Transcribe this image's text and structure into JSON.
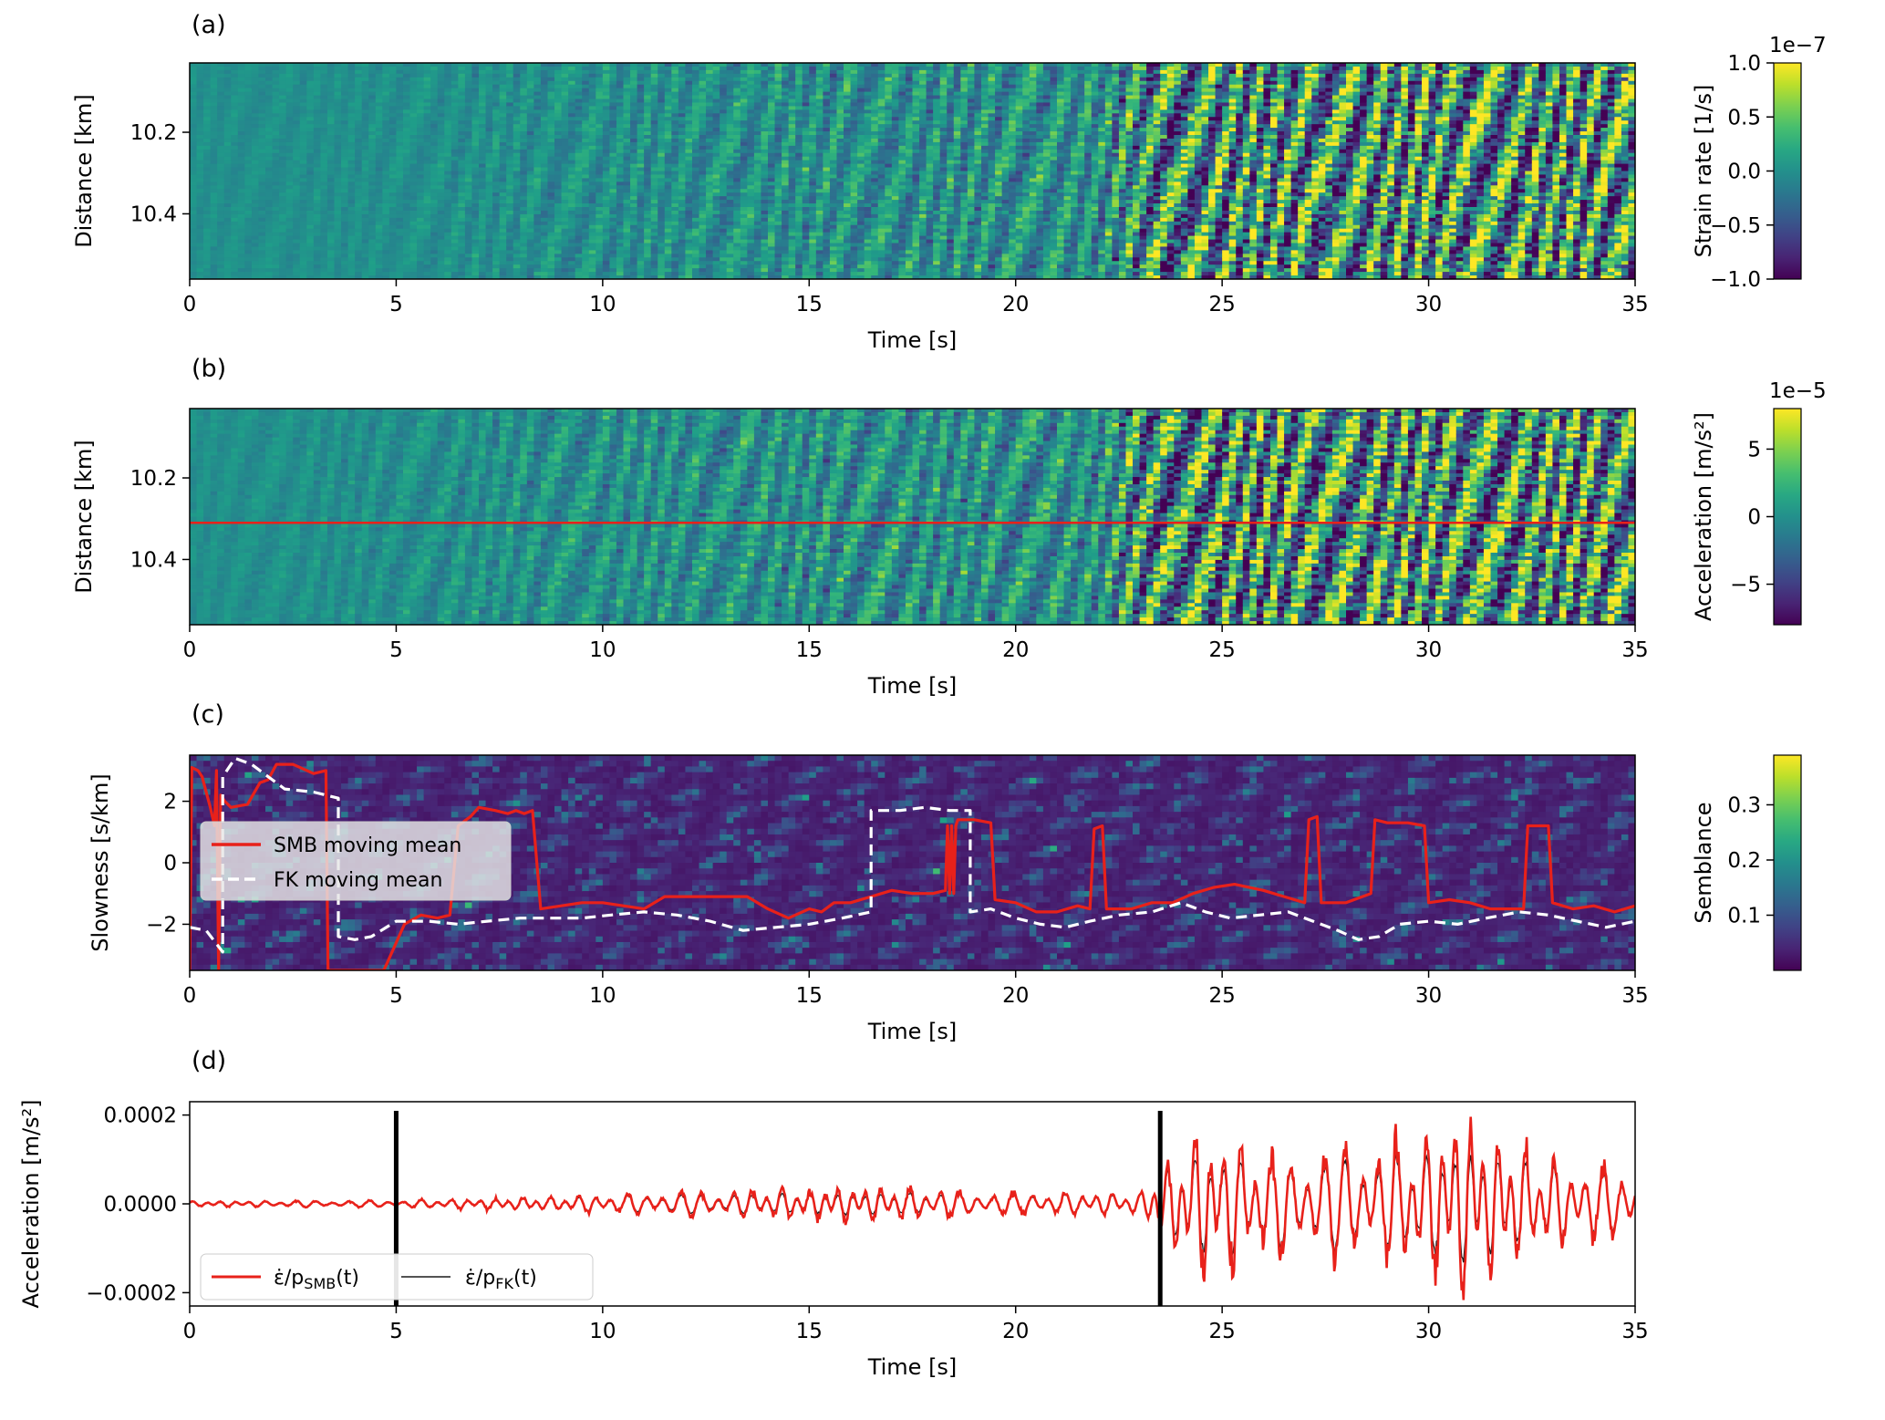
{
  "chart_data": [
    {
      "panel": "(a)",
      "type": "heatmap",
      "xlabel": "Time [s]",
      "ylabel": "Distance [km]",
      "xlim": [
        0,
        35
      ],
      "ylim": [
        10.56,
        10.03
      ],
      "xticks": [
        "0",
        "5",
        "10",
        "15",
        "20",
        "25",
        "30",
        "35"
      ],
      "yticks": [
        {
          "v": 10.2,
          "label": "10.2"
        },
        {
          "v": 10.4,
          "label": "10.4"
        }
      ],
      "colormap": "viridis",
      "colorbar": {
        "label": "Strain rate [1/s]",
        "range": [
          -1.0,
          1.0
        ],
        "ticks": [
          {
            "v": 1.0,
            "label": "1.0"
          },
          {
            "v": 0.5,
            "label": "0.5"
          },
          {
            "v": 0.0,
            "label": "0.0"
          },
          {
            "v": -0.5,
            "label": "−0.5"
          },
          {
            "v": -1.0,
            "label": "−1.0"
          }
        ],
        "offset": "1e−7"
      },
      "amplitude_envelope": [
        [
          0,
          0.1
        ],
        [
          5,
          0.14
        ],
        [
          9.5,
          0.32
        ],
        [
          16,
          0.5
        ],
        [
          22,
          0.6
        ],
        [
          23.5,
          1.35
        ],
        [
          35,
          1.45
        ]
      ]
    },
    {
      "panel": "(b)",
      "type": "heatmap",
      "xlabel": "Time [s]",
      "ylabel": "Distance [km]",
      "xlim": [
        0,
        35
      ],
      "ylim": [
        10.56,
        10.03
      ],
      "xticks": [
        "0",
        "5",
        "10",
        "15",
        "20",
        "25",
        "30",
        "35"
      ],
      "yticks": [
        {
          "v": 10.2,
          "label": "10.2"
        },
        {
          "v": 10.4,
          "label": "10.4"
        }
      ],
      "colormap": "viridis",
      "horizontal_line": {
        "y": 10.31,
        "color": "#e8211a"
      },
      "colorbar": {
        "label": "Acceleration [m/s²]",
        "range": [
          -8,
          8
        ],
        "ticks": [
          {
            "v": 5,
            "label": "5"
          },
          {
            "v": 0,
            "label": "0"
          },
          {
            "v": -5,
            "label": "−5"
          }
        ],
        "offset": "1e−5"
      },
      "amplitude_envelope": [
        [
          0,
          0.1
        ],
        [
          5,
          0.22
        ],
        [
          9.5,
          0.4
        ],
        [
          16,
          0.55
        ],
        [
          22,
          0.6
        ],
        [
          23.5,
          1.4
        ],
        [
          35,
          1.5
        ]
      ]
    },
    {
      "panel": "(c)",
      "type": "heatmap",
      "xlabel": "Time [s]",
      "ylabel": "Slowness [s/km]",
      "xlim": [
        0,
        35
      ],
      "ylim": [
        -3.5,
        3.5
      ],
      "xticks": [
        "0",
        "5",
        "10",
        "15",
        "20",
        "25",
        "30",
        "35"
      ],
      "yticks": [
        {
          "v": 2,
          "label": "2"
        },
        {
          "v": 0,
          "label": "0"
        },
        {
          "v": -2,
          "label": "−2"
        }
      ],
      "colormap": "viridis",
      "colorbar": {
        "label": "Semblance",
        "range": [
          0,
          0.39
        ],
        "ticks": [
          {
            "v": 0.3,
            "label": "0.3"
          },
          {
            "v": 0.2,
            "label": "0.2"
          },
          {
            "v": 0.1,
            "label": "0.1"
          }
        ]
      },
      "legend": {
        "position": "center-left",
        "entries": [
          "SMB moving mean",
          "FK moving mean"
        ]
      },
      "series": [
        {
          "name": "SMB moving mean",
          "color": "#e8211a",
          "style": "solid",
          "points": [
            [
              0,
              -3.5
            ],
            [
              0.05,
              3.1
            ],
            [
              0.2,
              3.0
            ],
            [
              0.3,
              2.8
            ],
            [
              0.5,
              1.8
            ],
            [
              0.6,
              1.2
            ],
            [
              0.65,
              3.0
            ],
            [
              0.7,
              -3.5
            ],
            [
              0.75,
              2.2
            ],
            [
              0.85,
              2.0
            ],
            [
              1.0,
              1.8
            ],
            [
              1.4,
              1.9
            ],
            [
              1.7,
              2.6
            ],
            [
              1.9,
              2.7
            ],
            [
              2.1,
              3.2
            ],
            [
              2.5,
              3.2
            ],
            [
              3.0,
              2.9
            ],
            [
              3.3,
              3.0
            ],
            [
              3.35,
              -3.5
            ],
            [
              4.7,
              -3.5
            ],
            [
              4.8,
              -3.2
            ],
            [
              5.2,
              -2.0
            ],
            [
              5.6,
              -1.7
            ],
            [
              6.0,
              -1.8
            ],
            [
              6.3,
              -1.7
            ],
            [
              6.5,
              1.2
            ],
            [
              6.8,
              1.5
            ],
            [
              7.0,
              1.8
            ],
            [
              7.4,
              1.7
            ],
            [
              7.7,
              1.6
            ],
            [
              7.9,
              1.7
            ],
            [
              8.1,
              1.6
            ],
            [
              8.3,
              1.7
            ],
            [
              8.5,
              -1.5
            ],
            [
              9.0,
              -1.4
            ],
            [
              9.5,
              -1.3
            ],
            [
              10.0,
              -1.3
            ],
            [
              10.5,
              -1.4
            ],
            [
              11.0,
              -1.5
            ],
            [
              11.5,
              -1.1
            ],
            [
              12.5,
              -1.1
            ],
            [
              13.5,
              -1.1
            ],
            [
              14.0,
              -1.5
            ],
            [
              14.5,
              -1.8
            ],
            [
              15.0,
              -1.5
            ],
            [
              15.3,
              -1.6
            ],
            [
              15.6,
              -1.3
            ],
            [
              16.0,
              -1.3
            ],
            [
              16.5,
              -1.1
            ],
            [
              17.0,
              -0.9
            ],
            [
              17.5,
              -1.0
            ],
            [
              18.0,
              -1.0
            ],
            [
              18.3,
              -0.9
            ],
            [
              18.35,
              1.2
            ],
            [
              18.4,
              -1.0
            ],
            [
              18.45,
              1.2
            ],
            [
              18.5,
              -1.0
            ],
            [
              18.55,
              1.2
            ],
            [
              18.6,
              1.4
            ],
            [
              19.0,
              1.4
            ],
            [
              19.4,
              1.3
            ],
            [
              19.5,
              -1.2
            ],
            [
              20.0,
              -1.3
            ],
            [
              20.5,
              -1.6
            ],
            [
              21.0,
              -1.6
            ],
            [
              21.5,
              -1.4
            ],
            [
              21.8,
              -1.5
            ],
            [
              21.9,
              1.1
            ],
            [
              22.1,
              1.2
            ],
            [
              22.2,
              -1.5
            ],
            [
              22.8,
              -1.5
            ],
            [
              23.3,
              -1.3
            ],
            [
              23.8,
              -1.3
            ],
            [
              24.3,
              -1.0
            ],
            [
              24.8,
              -0.8
            ],
            [
              25.3,
              -0.7
            ],
            [
              26.0,
              -0.9
            ],
            [
              26.5,
              -1.1
            ],
            [
              27.0,
              -1.3
            ],
            [
              27.1,
              1.4
            ],
            [
              27.3,
              1.5
            ],
            [
              27.4,
              -1.3
            ],
            [
              28.0,
              -1.3
            ],
            [
              28.6,
              -1.0
            ],
            [
              28.7,
              1.4
            ],
            [
              29.0,
              1.3
            ],
            [
              29.5,
              1.3
            ],
            [
              29.9,
              1.2
            ],
            [
              30.0,
              -1.3
            ],
            [
              30.5,
              -1.2
            ],
            [
              31.0,
              -1.3
            ],
            [
              31.5,
              -1.5
            ],
            [
              32.0,
              -1.5
            ],
            [
              32.3,
              -1.5
            ],
            [
              32.4,
              1.2
            ],
            [
              32.9,
              1.2
            ],
            [
              33.0,
              -1.3
            ],
            [
              33.5,
              -1.5
            ],
            [
              34.0,
              -1.4
            ],
            [
              34.5,
              -1.6
            ],
            [
              35.0,
              -1.4
            ]
          ]
        },
        {
          "name": "FK moving mean",
          "color": "#ffffff",
          "style": "dashed",
          "points": [
            [
              0,
              -2.1
            ],
            [
              0.4,
              -2.2
            ],
            [
              0.8,
              -2.9
            ],
            [
              0.8,
              2.8
            ],
            [
              1.1,
              3.4
            ],
            [
              1.5,
              3.2
            ],
            [
              2.0,
              2.7
            ],
            [
              2.3,
              2.4
            ],
            [
              3.0,
              2.3
            ],
            [
              3.6,
              2.1
            ],
            [
              3.6,
              -2.4
            ],
            [
              4.0,
              -2.5
            ],
            [
              4.4,
              -2.4
            ],
            [
              5.0,
              -1.9
            ],
            [
              5.8,
              -1.9
            ],
            [
              6.5,
              -2.0
            ],
            [
              7.2,
              -1.9
            ],
            [
              8.0,
              -1.8
            ],
            [
              8.8,
              -1.8
            ],
            [
              9.5,
              -1.8
            ],
            [
              10.2,
              -1.7
            ],
            [
              11.0,
              -1.6
            ],
            [
              11.8,
              -1.7
            ],
            [
              12.6,
              -1.9
            ],
            [
              13.4,
              -2.2
            ],
            [
              14.2,
              -2.1
            ],
            [
              15.0,
              -2.0
            ],
            [
              15.8,
              -1.8
            ],
            [
              16.5,
              -1.6
            ],
            [
              16.5,
              1.7
            ],
            [
              17.2,
              1.7
            ],
            [
              17.8,
              1.8
            ],
            [
              18.4,
              1.7
            ],
            [
              18.9,
              1.7
            ],
            [
              18.9,
              -1.6
            ],
            [
              19.4,
              -1.5
            ],
            [
              20.0,
              -1.8
            ],
            [
              20.6,
              -2.0
            ],
            [
              21.2,
              -2.1
            ],
            [
              21.8,
              -1.9
            ],
            [
              22.5,
              -1.7
            ],
            [
              23.3,
              -1.6
            ],
            [
              24.0,
              -1.3
            ],
            [
              24.6,
              -1.6
            ],
            [
              25.2,
              -1.8
            ],
            [
              25.9,
              -1.7
            ],
            [
              26.6,
              -1.6
            ],
            [
              27.2,
              -1.9
            ],
            [
              27.8,
              -2.2
            ],
            [
              28.3,
              -2.5
            ],
            [
              28.8,
              -2.4
            ],
            [
              29.3,
              -2.0
            ],
            [
              30.0,
              -1.9
            ],
            [
              30.7,
              -2.0
            ],
            [
              31.4,
              -1.8
            ],
            [
              32.2,
              -1.6
            ],
            [
              32.9,
              -1.7
            ],
            [
              33.6,
              -1.9
            ],
            [
              34.3,
              -2.1
            ],
            [
              35.0,
              -1.9
            ]
          ]
        }
      ]
    },
    {
      "panel": "(d)",
      "type": "line",
      "xlabel": "Time [s]",
      "ylabel": "Acceleration [m/s²]",
      "xlim": [
        0,
        35
      ],
      "ylim": [
        -0.00023,
        0.00023
      ],
      "xticks": [
        "0",
        "5",
        "10",
        "15",
        "20",
        "25",
        "30",
        "35"
      ],
      "yticks": [
        {
          "v": 0.0002,
          "label": "0.0002"
        },
        {
          "v": 0.0,
          "label": "0.0000"
        },
        {
          "v": -0.0002,
          "label": "−0.0002"
        }
      ],
      "vertical_markers": [
        5.0,
        23.5
      ],
      "legend": {
        "position": "bottom-left",
        "entries": [
          {
            "main": "ε̇/p",
            "sub": "SMB",
            "tail": "(t)"
          },
          {
            "main": "ε̇/p",
            "sub": "FK",
            "tail": "(t)"
          }
        ]
      },
      "series": [
        {
          "name": "ε̇/p_SMB(t)",
          "color": "#e8211a",
          "width": 2.6,
          "envelope": [
            [
              0,
              6e-06
            ],
            [
              5,
              8e-06
            ],
            [
              8,
              1.4e-05
            ],
            [
              11,
              2.5e-05
            ],
            [
              16,
              4e-05
            ],
            [
              19,
              3e-05
            ],
            [
              23,
              2.2e-05
            ],
            [
              23.5,
              8e-05
            ],
            [
              24.6,
              0.00018
            ],
            [
              26,
              0.00012
            ],
            [
              28,
              0.00012
            ],
            [
              31,
              0.0002
            ],
            [
              33,
              9e-05
            ],
            [
              35,
              8e-05
            ]
          ]
        },
        {
          "name": "ε̇/p_FK(t)",
          "color": "#1a1a1a",
          "width": 1.3,
          "envelope": [
            [
              0,
              5e-06
            ],
            [
              5,
              7e-06
            ],
            [
              8,
              1.2e-05
            ],
            [
              11,
              2e-05
            ],
            [
              16,
              2.4e-05
            ],
            [
              19,
              2.5e-05
            ],
            [
              23,
              2e-05
            ],
            [
              23.5,
              7e-05
            ],
            [
              24.6,
              0.00012
            ],
            [
              26,
              0.0001
            ],
            [
              28,
              0.0001
            ],
            [
              31,
              0.00013
            ],
            [
              33,
              8e-05
            ],
            [
              35,
              7e-05
            ]
          ]
        }
      ]
    }
  ]
}
